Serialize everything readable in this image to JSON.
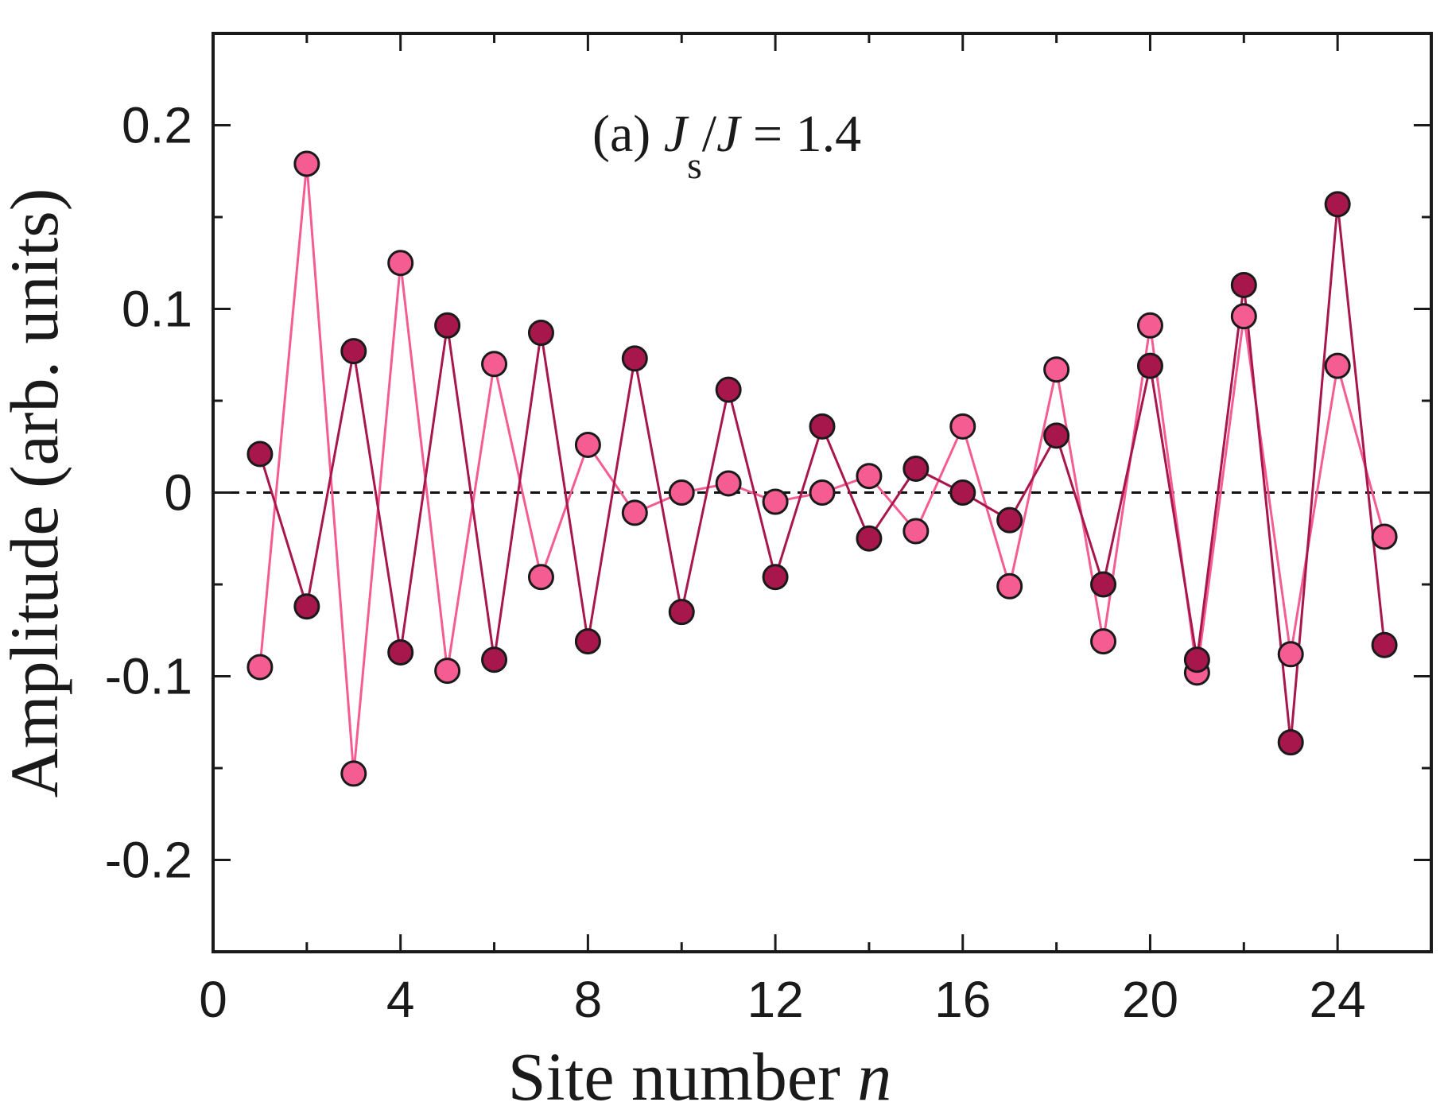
{
  "chart_data": {
    "type": "line",
    "title": "",
    "annotation": {
      "prefix": "(a) ",
      "var1": "J",
      "var1_sub": "s",
      "slash": "/",
      "var2": "J",
      "rest": " = 1.4"
    },
    "xlabel": "Site number ",
    "xlabel_var": "n",
    "ylabel": "Amplitude (arb. units)",
    "xlim": [
      0,
      26
    ],
    "ylim": [
      -0.25,
      0.25
    ],
    "xticks": [
      0,
      4,
      8,
      12,
      16,
      20,
      24
    ],
    "xtick_labels": [
      "0",
      "4",
      "8",
      "12",
      "16",
      "20",
      "24"
    ],
    "xminor": [
      2,
      6,
      10,
      14,
      18,
      22
    ],
    "yticks": [
      -0.2,
      -0.1,
      0,
      0.1,
      0.2
    ],
    "ytick_labels": [
      "-0.2",
      "-0.1",
      "0",
      "0.1",
      "0.2"
    ],
    "yminor": [
      -0.15,
      -0.05,
      0.05,
      0.15
    ],
    "zero_line": true,
    "x": [
      1,
      2,
      3,
      4,
      5,
      6,
      7,
      8,
      9,
      10,
      11,
      12,
      13,
      14,
      15,
      16,
      17,
      18,
      19,
      20,
      21,
      22,
      23,
      24,
      25
    ],
    "series": [
      {
        "name": "light",
        "color": "#f55c92",
        "values": [
          -0.095,
          0.179,
          -0.153,
          0.125,
          -0.097,
          0.07,
          -0.046,
          0.026,
          -0.011,
          0.0,
          0.005,
          -0.005,
          0.0,
          0.009,
          -0.021,
          0.036,
          -0.051,
          0.067,
          -0.081,
          0.091,
          -0.098,
          0.096,
          -0.088,
          0.069,
          -0.024
        ]
      },
      {
        "name": "dark",
        "color": "#a8174c",
        "values": [
          0.021,
          -0.062,
          0.077,
          -0.087,
          0.091,
          -0.091,
          0.087,
          -0.081,
          0.073,
          -0.065,
          0.056,
          -0.046,
          0.036,
          -0.025,
          0.013,
          0.0,
          -0.015,
          0.031,
          -0.05,
          0.069,
          -0.091,
          0.113,
          -0.136,
          0.157,
          -0.083
        ]
      }
    ]
  }
}
